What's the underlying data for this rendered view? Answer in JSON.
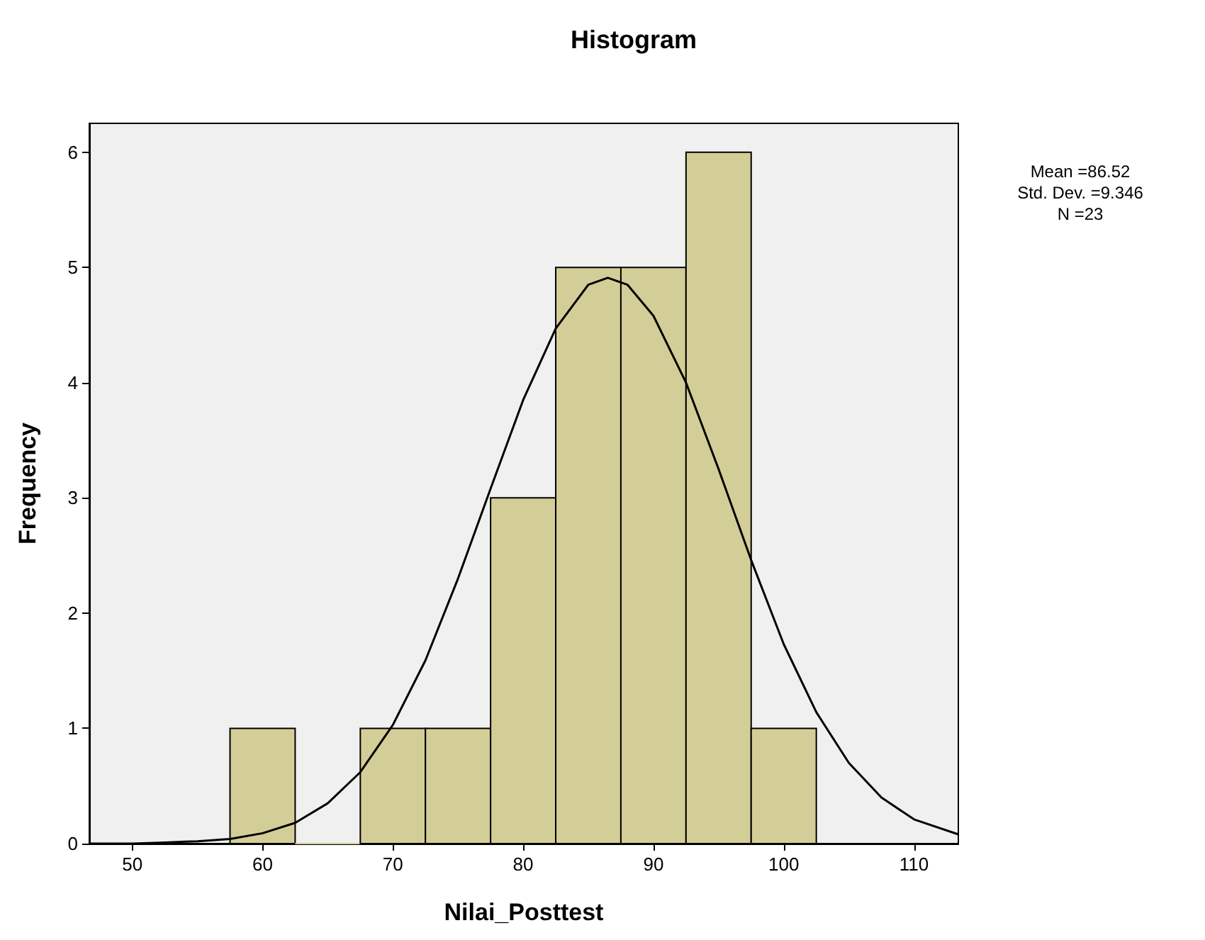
{
  "chart_data": {
    "type": "histogram",
    "title": "Histogram",
    "xlabel": "Nilai_Posttest",
    "ylabel": "Frequency",
    "bins": [
      57.5,
      62.5,
      67.5,
      72.5,
      77.5,
      82.5,
      87.5,
      92.5,
      97.5,
      102.5
    ],
    "values": [
      1,
      0,
      1,
      1,
      3,
      5,
      5,
      6,
      1
    ],
    "color": "#d3ce97",
    "xlim": [
      46.7,
      113.4
    ],
    "xticks": [
      50,
      60,
      70,
      80,
      90,
      100,
      110
    ],
    "ylim": [
      0,
      6.25
    ],
    "yticks": [
      0,
      1,
      2,
      3,
      4,
      5,
      6
    ],
    "annotations": [
      "Mean =86.52",
      "Std. Dev. =9.346",
      "N =23"
    ],
    "series": [
      {
        "type": "line",
        "color": "#000000",
        "marker": "none",
        "x": [
          46.7,
          50,
          52.5,
          55,
          57.5,
          60,
          62.5,
          65,
          67.5,
          70,
          72.5,
          75,
          77.5,
          80,
          82.5,
          85,
          86.5,
          88,
          90,
          92.5,
          95,
          97.5,
          100,
          102.5,
          105,
          107.5,
          110,
          113.4
        ],
        "values": [
          0,
          0,
          0.01,
          0.02,
          0.04,
          0.09,
          0.18,
          0.35,
          0.62,
          1.03,
          1.59,
          2.3,
          3.08,
          3.85,
          4.47,
          4.85,
          4.91,
          4.85,
          4.58,
          4.0,
          3.25,
          2.46,
          1.73,
          1.14,
          0.7,
          0.4,
          0.21,
          0.08
        ]
      }
    ]
  }
}
